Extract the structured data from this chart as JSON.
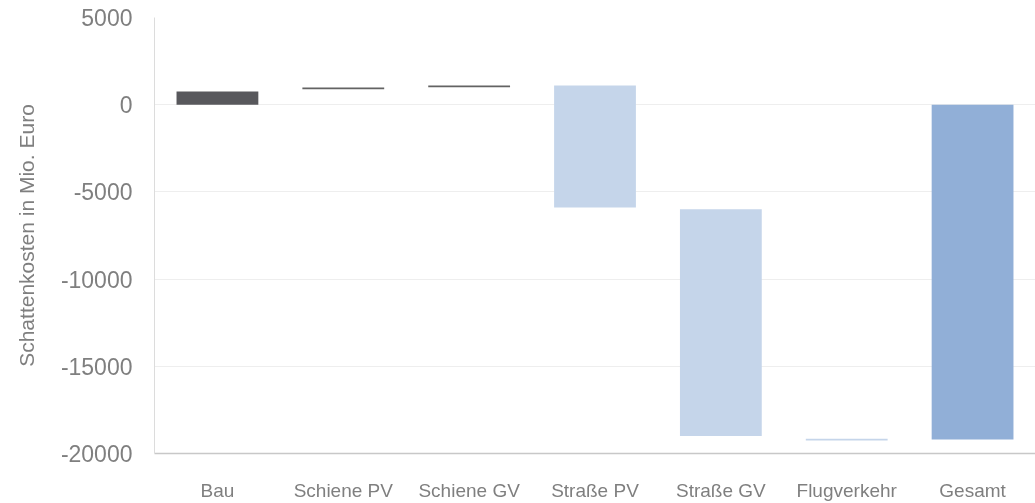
{
  "chart_data": {
    "type": "bar",
    "ylabel": "Schattenkosten in Mio. Euro",
    "categories": [
      "Bau",
      "Schiene PV",
      "Schiene GV",
      "Straße PV",
      "Straße GV",
      "Flugverkehr",
      "Gesamt"
    ],
    "base": [
      0,
      880,
      1000,
      1100,
      -6000,
      -19150,
      0
    ],
    "values": [
      750,
      100,
      100,
      -7000,
      -13000,
      -100,
      -19200
    ],
    "colors": [
      "#58585c",
      "#636363",
      "#636363",
      "#c5d5ea",
      "#c5d5ea",
      "#c5d5ea",
      "#91afd7"
    ],
    "ylim": [
      -20000,
      5000
    ],
    "yticks": [
      -20000,
      -15000,
      -10000,
      -5000,
      0,
      5000
    ],
    "grid": "y"
  }
}
